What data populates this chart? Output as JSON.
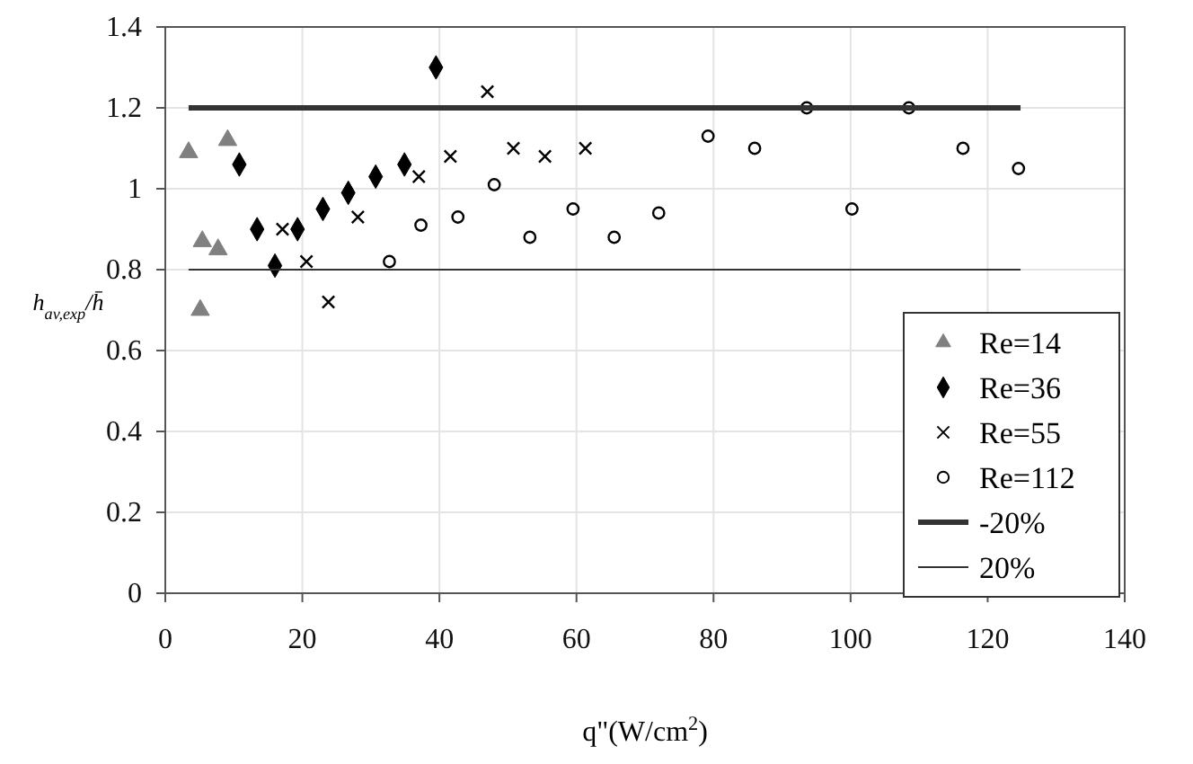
{
  "chart_data": {
    "type": "scatter",
    "xlabel": "q\"(W/cm$^{2}$)",
    "ylabel": "h$_{av,exp}$/h̄",
    "xlim": [
      0,
      140
    ],
    "ylim": [
      0,
      1.4
    ],
    "xticks": [
      0,
      20,
      40,
      60,
      80,
      100,
      120,
      140
    ],
    "yticks": [
      0,
      0.2,
      0.4,
      0.6,
      0.8,
      1,
      1.2,
      1.4
    ],
    "grid": true,
    "legend": "bottom right",
    "series": [
      {
        "name": "Re=14",
        "color": "#808080",
        "marker": "triangle",
        "x": [
          3.4,
          5.4,
          7.7,
          9.1,
          5.1
        ],
        "values": [
          1.09,
          0.87,
          0.85,
          1.12,
          0.7
        ]
      },
      {
        "name": "Re=36",
        "color": "#000000",
        "marker": "diamond",
        "x": [
          10.8,
          13.4,
          16,
          19.3,
          23,
          26.7,
          30.7,
          34.9,
          39.5
        ],
        "values": [
          1.06,
          0.9,
          0.81,
          0.9,
          0.95,
          0.99,
          1.03,
          1.06,
          1.3
        ]
      },
      {
        "name": "Re=55",
        "color": "#000000",
        "marker": "cross",
        "x": [
          17.1,
          20.6,
          23.8,
          28.1,
          37,
          41.6,
          47,
          50.8,
          55.4,
          61.3
        ],
        "values": [
          0.9,
          0.82,
          0.72,
          0.93,
          1.03,
          1.08,
          1.24,
          1.1,
          1.08,
          1.1
        ]
      },
      {
        "name": "Re=112",
        "color": "#000000",
        "marker": "circle",
        "x": [
          32.7,
          37.3,
          42.7,
          48,
          53.2,
          59.5,
          65.5,
          72,
          79.2,
          86,
          93.6,
          100.2,
          108.5,
          116.4,
          124.5
        ],
        "values": [
          0.82,
          0.91,
          0.93,
          1.01,
          0.88,
          0.95,
          0.88,
          0.94,
          1.13,
          1.1,
          1.2,
          0.95,
          1.2,
          1.1,
          1.05
        ]
      },
      {
        "name": "-20%",
        "type": "line",
        "color": "#333333",
        "x": [
          3.4,
          124.8
        ],
        "values": [
          1.2,
          1.2
        ]
      },
      {
        "name": "20%",
        "type": "line",
        "color": "#333333",
        "x": [
          3.4,
          124.8
        ],
        "values": [
          0.8,
          0.8
        ]
      }
    ]
  }
}
